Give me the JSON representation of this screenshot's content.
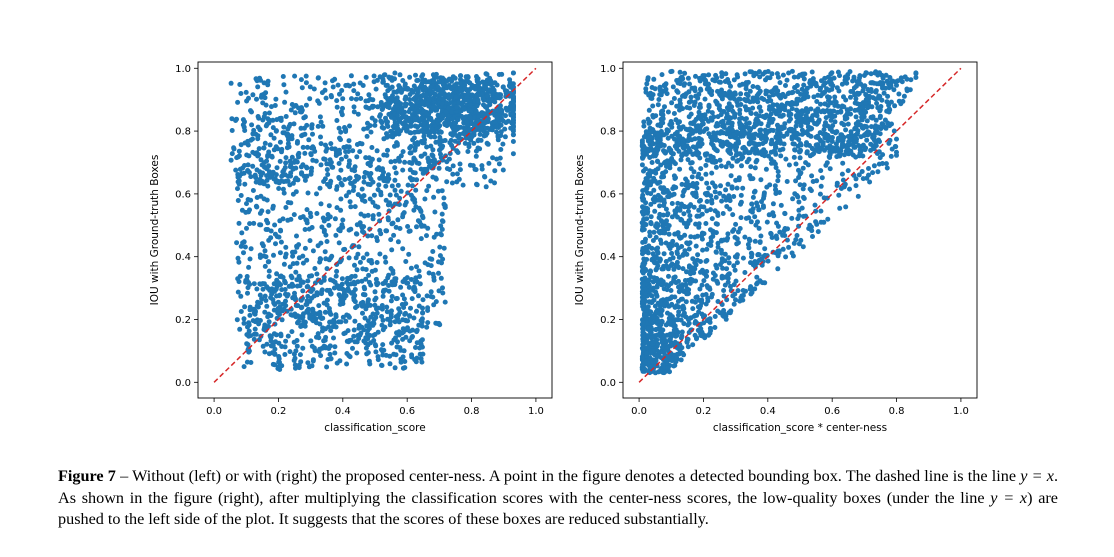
{
  "chart_data": [
    {
      "type": "scatter",
      "xlabel": "classification_score",
      "ylabel": "IOU with Ground-truth Boxes",
      "xlim": [
        -0.05,
        1.05
      ],
      "ylim": [
        -0.05,
        1.02
      ],
      "xticks": [
        "0.0",
        "0.2",
        "0.4",
        "0.6",
        "0.8",
        "1.0"
      ],
      "yticks": [
        "0.0",
        "0.2",
        "0.4",
        "0.6",
        "0.8",
        "1.0"
      ],
      "marker_color": "#1f77b4",
      "reference_line": {
        "type": "y=x",
        "color": "#d62728",
        "style": "dashed"
      },
      "point_distribution": "dense cloud, classification_score 0.04–0.93, IOU 0.03–0.99; densest near top-right (0.7–0.9, 0.85–0.98) and central region; many low-IOU points at moderate scores"
    },
    {
      "type": "scatter",
      "xlabel": "classification_score * center-ness",
      "ylabel": "IOU with Ground-truth Boxes",
      "xlim": [
        -0.05,
        1.05
      ],
      "ylim": [
        -0.05,
        1.02
      ],
      "xticks": [
        "0.0",
        "0.2",
        "0.4",
        "0.6",
        "0.8",
        "1.0"
      ],
      "yticks": [
        "0.0",
        "0.2",
        "0.4",
        "0.6",
        "0.8",
        "1.0"
      ],
      "marker_color": "#1f77b4",
      "reference_line": {
        "type": "y=x",
        "color": "#d62728",
        "style": "dashed"
      },
      "point_distribution": "points shifted left, x 0.01–0.86, IOU 0.03–0.99; mostly above the y=x line, triangular cloud filling the upper-left region"
    }
  ],
  "caption": {
    "label": "Figure 7",
    "text_1": " – Without (left) or with (right) the proposed center-ness. A point in the figure denotes a detected bounding box. The dashed line is the line ",
    "math_1": "y = x",
    "text_2": ". As shown in the figure (right), after multiplying the classification scores with the center-ness scores, the low-quality boxes (under the line ",
    "math_2": "y = x",
    "text_3": ") are pushed to the left side of the plot. It suggests that the scores of these boxes are reduced substantially."
  }
}
